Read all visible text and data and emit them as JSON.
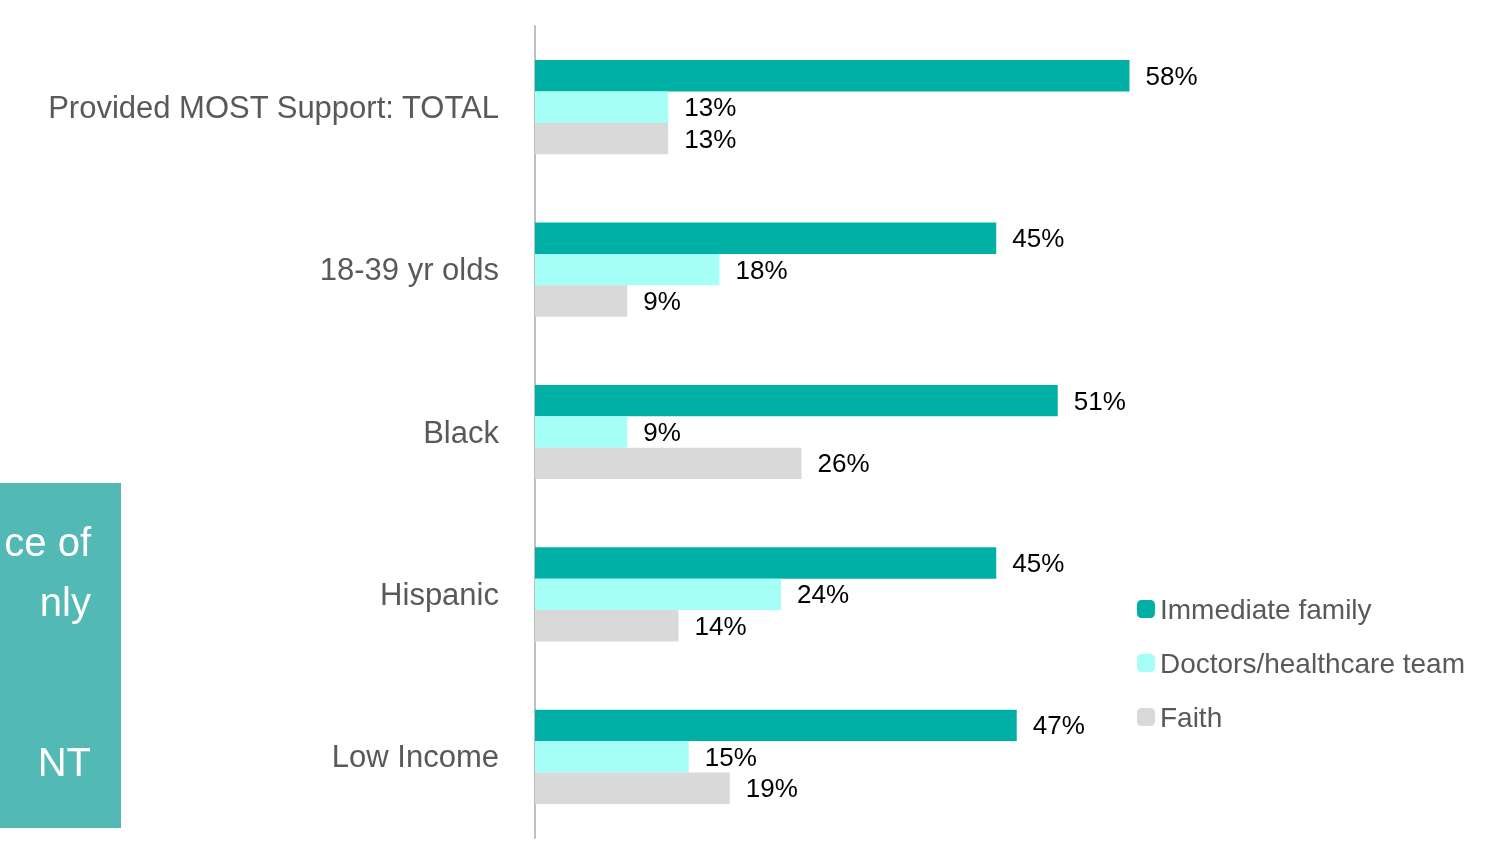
{
  "chart_data": {
    "type": "bar",
    "orientation": "horizontal",
    "categories": [
      "Provided MOST Support: TOTAL",
      "18-39 yr olds",
      "Black",
      "Hispanic",
      "Low Income"
    ],
    "series": [
      {
        "name": "Immediate family",
        "color": "#00b0a4",
        "values": [
          58,
          45,
          51,
          45,
          47
        ],
        "value_labels": [
          "58%",
          "45%",
          "51%",
          "45%",
          "47%"
        ]
      },
      {
        "name": "Doctors/healthcare team",
        "color": "#a5fff7",
        "values": [
          13,
          18,
          9,
          24,
          15
        ],
        "value_labels": [
          "13%",
          "18%",
          "9%",
          "24%",
          "15%"
        ]
      },
      {
        "name": "Faith",
        "color": "#d9d9d9",
        "values": [
          13,
          9,
          26,
          14,
          19
        ],
        "value_labels": [
          "13%",
          "9%",
          "26%",
          "14%",
          "19%"
        ]
      }
    ],
    "legend": "bottom right",
    "annotations": [
      "ce of",
      "nly",
      "NT"
    ]
  }
}
